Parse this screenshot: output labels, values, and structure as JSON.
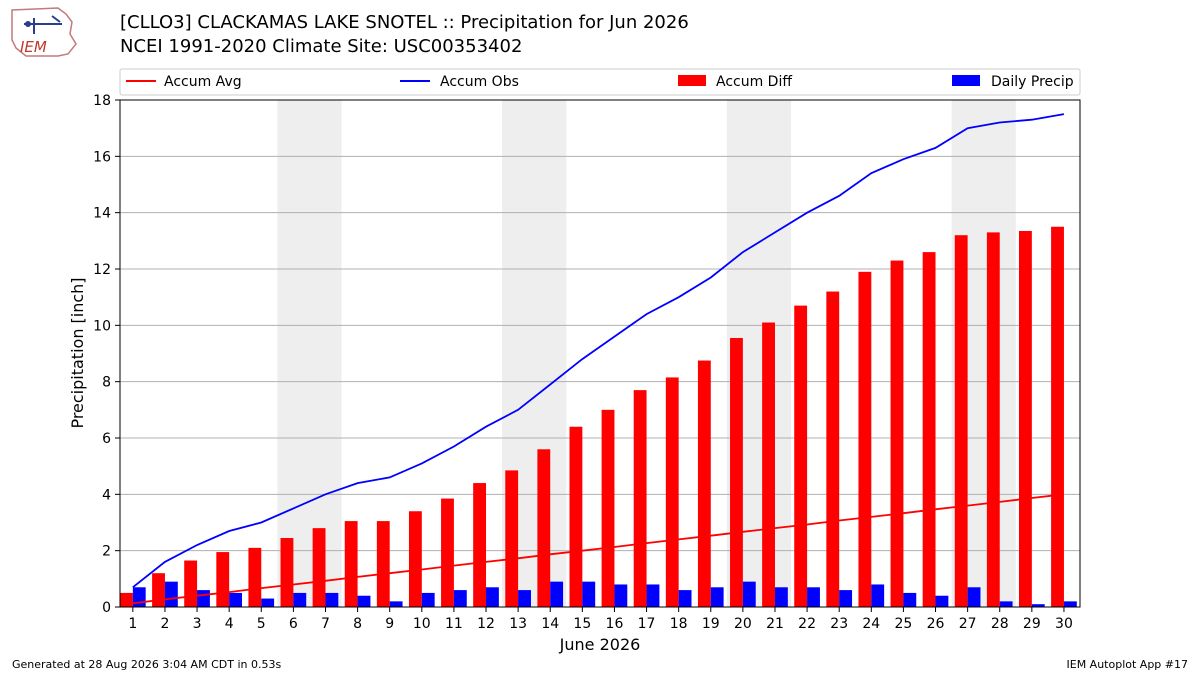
{
  "header": {
    "title_line1": "[CLLO3] CLACKAMAS LAKE SNOTEL :: Precipitation for Jun 2026",
    "title_line2": "NCEI 1991-2020 Climate Site: USC00353402",
    "logo_text": "IEM"
  },
  "footer": {
    "left": "Generated at 28 Aug 2026 3:04 AM CDT in 0.53s",
    "right": "IEM Autoplot App #17"
  },
  "colors": {
    "accum_avg": "#ff0000",
    "accum_obs": "#0000ff",
    "accum_diff": "#ff0000",
    "daily_precip": "#0000ff",
    "weekend_shade": "#eeeeee",
    "grid": "#b0b0b0"
  },
  "chart_data": {
    "type": "bar",
    "xlabel": "June 2026",
    "ylabel": "Precipitation [inch]",
    "ylim": [
      0,
      18
    ],
    "yticks": [
      0,
      2,
      4,
      6,
      8,
      10,
      12,
      14,
      16,
      18
    ],
    "xlim": [
      0.6,
      30.5
    ],
    "grid": true,
    "legend_placement": "top",
    "days": [
      1,
      2,
      3,
      4,
      5,
      6,
      7,
      8,
      9,
      10,
      11,
      12,
      13,
      14,
      15,
      16,
      17,
      18,
      19,
      20,
      21,
      22,
      23,
      24,
      25,
      26,
      27,
      28,
      29,
      30
    ],
    "shaded_days": [
      [
        6,
        7
      ],
      [
        13,
        14
      ],
      [
        20,
        21
      ],
      [
        27,
        28
      ]
    ],
    "legend": [
      "Accum Avg",
      "Accum Obs",
      "Accum Diff",
      "Daily Precip"
    ],
    "series": [
      {
        "name": "Accum Avg",
        "kind": "line",
        "values": [
          0.13,
          0.27,
          0.4,
          0.53,
          0.67,
          0.8,
          0.93,
          1.07,
          1.2,
          1.33,
          1.47,
          1.6,
          1.73,
          1.87,
          2.0,
          2.13,
          2.27,
          2.4,
          2.53,
          2.67,
          2.8,
          2.93,
          3.07,
          3.2,
          3.33,
          3.47,
          3.6,
          3.73,
          3.87,
          4.0
        ]
      },
      {
        "name": "Accum Obs",
        "kind": "line",
        "values": [
          0.7,
          1.6,
          2.2,
          2.7,
          3.0,
          3.5,
          4.0,
          4.4,
          4.6,
          5.1,
          5.7,
          6.4,
          7.0,
          7.9,
          8.8,
          9.6,
          10.4,
          11.0,
          11.7,
          12.6,
          13.3,
          14.0,
          14.6,
          15.4,
          15.9,
          16.3,
          17.0,
          17.2,
          17.3,
          17.5
        ]
      },
      {
        "name": "Accum Diff",
        "kind": "bar",
        "values": [
          0.5,
          1.2,
          1.65,
          1.95,
          2.1,
          2.45,
          2.8,
          3.05,
          3.05,
          3.4,
          3.85,
          4.4,
          4.85,
          5.6,
          6.4,
          7.0,
          7.7,
          8.15,
          8.75,
          9.55,
          10.1,
          10.7,
          11.2,
          11.9,
          12.3,
          12.6,
          13.2,
          13.3,
          13.35,
          13.5
        ]
      },
      {
        "name": "Daily Precip",
        "kind": "bar",
        "values": [
          0.7,
          0.9,
          0.6,
          0.5,
          0.3,
          0.5,
          0.5,
          0.4,
          0.2,
          0.5,
          0.6,
          0.7,
          0.6,
          0.9,
          0.9,
          0.8,
          0.8,
          0.6,
          0.7,
          0.9,
          0.7,
          0.7,
          0.6,
          0.8,
          0.5,
          0.4,
          0.7,
          0.2,
          0.1,
          0.2
        ]
      }
    ]
  }
}
